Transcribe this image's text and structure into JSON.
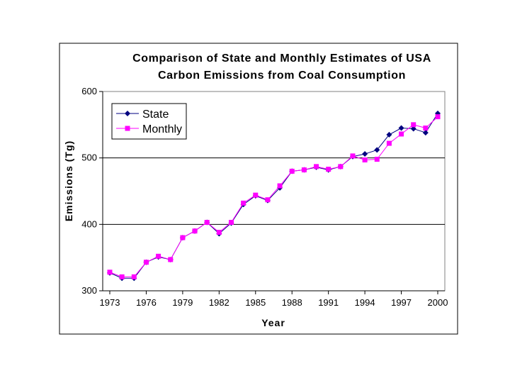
{
  "chart_data": {
    "type": "line",
    "title": [
      "Comparison of State and Monthly Estimates of USA",
      "Carbon Emissions from Coal Consumption"
    ],
    "xlabel": "Year",
    "ylabel": "Emissions (Tg)",
    "xlim": [
      1973,
      2000
    ],
    "ylim": [
      300,
      600
    ],
    "x_ticks": [
      "1973",
      "1976",
      "1979",
      "1982",
      "1985",
      "1988",
      "1991",
      "1994",
      "1997",
      "2000"
    ],
    "y_ticks": [
      "300",
      "400",
      "500",
      "600"
    ],
    "grid": "horizontal",
    "legend_position": "top-left",
    "x": [
      1973,
      1974,
      1975,
      1976,
      1977,
      1978,
      1979,
      1980,
      1981,
      1982,
      1983,
      1984,
      1985,
      1986,
      1987,
      1988,
      1989,
      1990,
      1991,
      1992,
      1993,
      1994,
      1995,
      1996,
      1997,
      1998,
      1999,
      2000
    ],
    "series": [
      {
        "name": "State",
        "color": "#000080",
        "marker": "diamond",
        "values": [
          327,
          319,
          319,
          343,
          351,
          347,
          380,
          390,
          403,
          386,
          402,
          430,
          443,
          436,
          455,
          480,
          482,
          486,
          482,
          487,
          502,
          506,
          512,
          535,
          545,
          544,
          538,
          567
        ]
      },
      {
        "name": "Monthly",
        "color": "#ff00ff",
        "marker": "square",
        "values": [
          328,
          321,
          321,
          343,
          352,
          347,
          380,
          390,
          403,
          388,
          403,
          432,
          444,
          437,
          458,
          480,
          482,
          487,
          483,
          487,
          503,
          497,
          498,
          522,
          536,
          550,
          545,
          562
        ]
      }
    ]
  }
}
